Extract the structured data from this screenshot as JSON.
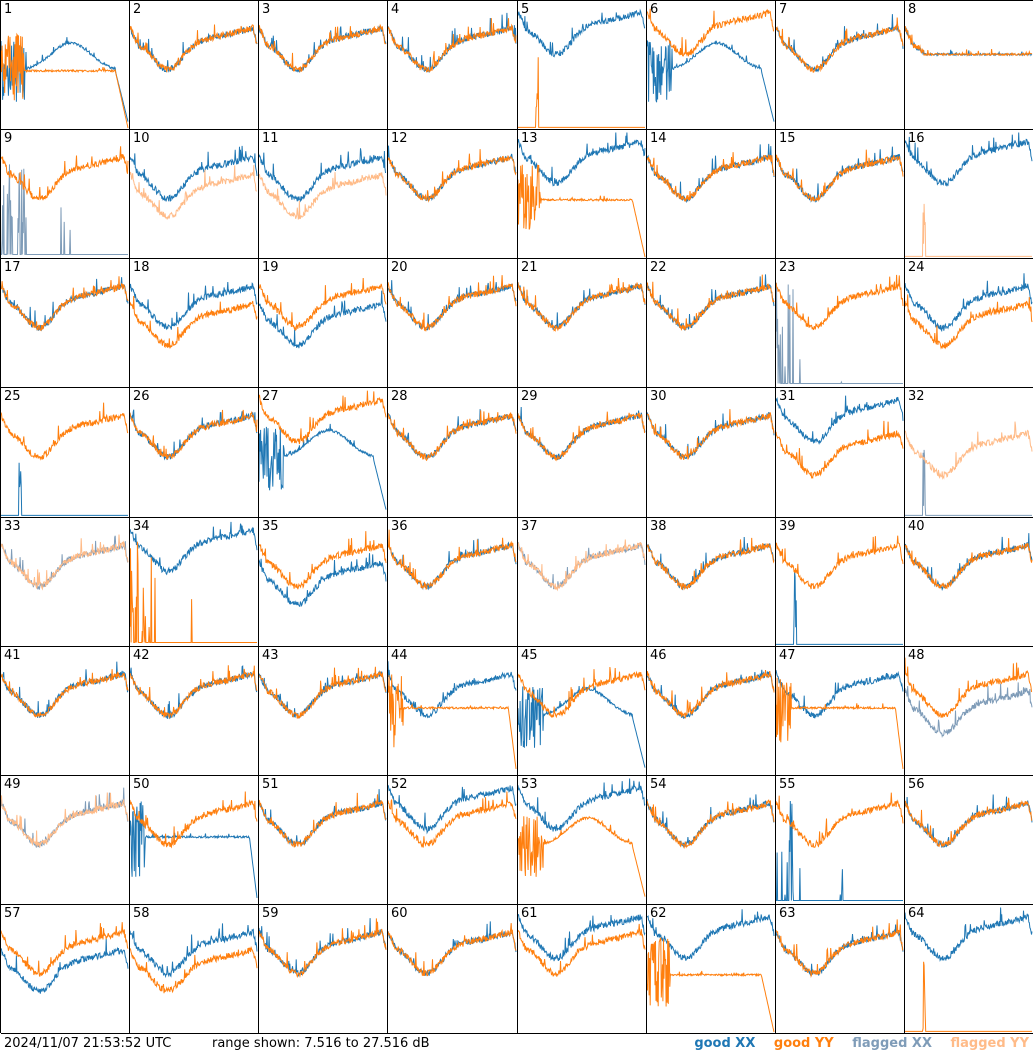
{
  "footer": {
    "timestamp": "2024/11/07 21:53:52 UTC",
    "range_text": "range shown: 7.516 to 27.516 dB"
  },
  "legend": [
    {
      "label": "good XX",
      "color": "#1f77b4"
    },
    {
      "label": "good YY",
      "color": "#ff7f0e"
    },
    {
      "label": "flagged XX",
      "color": "#7f9cb8"
    },
    {
      "label": "flagged YY",
      "color": "#ffbb88"
    }
  ],
  "chart_data": {
    "type": "line",
    "ylim": [
      7.516,
      27.516
    ],
    "grid": false,
    "legend_position": "bottom-right",
    "panels": [
      {
        "label": "1",
        "xx": {
          "state": "good",
          "shape": "hump"
        },
        "yy": {
          "state": "good",
          "shape": "dropout_plateau"
        }
      },
      {
        "label": "2",
        "xx": {
          "state": "good",
          "shape": "normal"
        },
        "yy": {
          "state": "good",
          "shape": "normal"
        }
      },
      {
        "label": "3",
        "xx": {
          "state": "good",
          "shape": "normal"
        },
        "yy": {
          "state": "good",
          "shape": "normal"
        }
      },
      {
        "label": "4",
        "xx": {
          "state": "good",
          "shape": "normal"
        },
        "yy": {
          "state": "good",
          "shape": "normal"
        }
      },
      {
        "label": "5",
        "xx": {
          "state": "good",
          "shape": "high"
        },
        "yy": {
          "state": "good",
          "shape": "flat_spike"
        }
      },
      {
        "label": "6",
        "xx": {
          "state": "good",
          "shape": "hump"
        },
        "yy": {
          "state": "good",
          "shape": "high"
        }
      },
      {
        "label": "7",
        "xx": {
          "state": "good",
          "shape": "normal"
        },
        "yy": {
          "state": "good",
          "shape": "normal"
        }
      },
      {
        "label": "8",
        "xx": {
          "state": "good",
          "shape": "plateau"
        },
        "yy": {
          "state": "good",
          "shape": "plateau"
        }
      },
      {
        "label": "9",
        "xx": {
          "state": "flagged",
          "shape": "flat_spikes"
        },
        "yy": {
          "state": "good",
          "shape": "normal"
        }
      },
      {
        "label": "10",
        "xx": {
          "state": "good",
          "shape": "normal"
        },
        "yy": {
          "state": "flagged",
          "shape": "low"
        }
      },
      {
        "label": "11",
        "xx": {
          "state": "good",
          "shape": "normal"
        },
        "yy": {
          "state": "flagged",
          "shape": "low"
        }
      },
      {
        "label": "12",
        "xx": {
          "state": "good",
          "shape": "normal"
        },
        "yy": {
          "state": "good",
          "shape": "normal"
        }
      },
      {
        "label": "13",
        "xx": {
          "state": "good",
          "shape": "high"
        },
        "yy": {
          "state": "good",
          "shape": "dropout_plateau"
        }
      },
      {
        "label": "14",
        "xx": {
          "state": "good",
          "shape": "normal"
        },
        "yy": {
          "state": "good",
          "shape": "normal"
        }
      },
      {
        "label": "15",
        "xx": {
          "state": "good",
          "shape": "normal"
        },
        "yy": {
          "state": "good",
          "shape": "normal"
        }
      },
      {
        "label": "16",
        "xx": {
          "state": "good",
          "shape": "high"
        },
        "yy": {
          "state": "flagged",
          "shape": "flat_spike"
        }
      },
      {
        "label": "17",
        "xx": {
          "state": "good",
          "shape": "normal"
        },
        "yy": {
          "state": "good",
          "shape": "normal"
        }
      },
      {
        "label": "18",
        "xx": {
          "state": "good",
          "shape": "normal"
        },
        "yy": {
          "state": "good",
          "shape": "low"
        }
      },
      {
        "label": "19",
        "xx": {
          "state": "good",
          "shape": "low"
        },
        "yy": {
          "state": "good",
          "shape": "normal"
        }
      },
      {
        "label": "20",
        "xx": {
          "state": "good",
          "shape": "normal"
        },
        "yy": {
          "state": "good",
          "shape": "normal"
        }
      },
      {
        "label": "21",
        "xx": {
          "state": "good",
          "shape": "normal"
        },
        "yy": {
          "state": "good",
          "shape": "normal"
        }
      },
      {
        "label": "22",
        "xx": {
          "state": "good",
          "shape": "normal"
        },
        "yy": {
          "state": "good",
          "shape": "normal"
        }
      },
      {
        "label": "23",
        "xx": {
          "state": "flagged",
          "shape": "flat_spikes"
        },
        "yy": {
          "state": "good",
          "shape": "normal"
        }
      },
      {
        "label": "24",
        "xx": {
          "state": "good",
          "shape": "normal"
        },
        "yy": {
          "state": "good",
          "shape": "low"
        }
      },
      {
        "label": "25",
        "xx": {
          "state": "good",
          "shape": "flat_spike"
        },
        "yy": {
          "state": "good",
          "shape": "normal"
        }
      },
      {
        "label": "26",
        "xx": {
          "state": "good",
          "shape": "normal"
        },
        "yy": {
          "state": "good",
          "shape": "normal"
        }
      },
      {
        "label": "27",
        "xx": {
          "state": "good",
          "shape": "hump"
        },
        "yy": {
          "state": "good",
          "shape": "high"
        }
      },
      {
        "label": "28",
        "xx": {
          "state": "good",
          "shape": "normal"
        },
        "yy": {
          "state": "good",
          "shape": "normal"
        }
      },
      {
        "label": "29",
        "xx": {
          "state": "good",
          "shape": "normal"
        },
        "yy": {
          "state": "good",
          "shape": "normal"
        }
      },
      {
        "label": "30",
        "xx": {
          "state": "good",
          "shape": "normal"
        },
        "yy": {
          "state": "good",
          "shape": "normal"
        }
      },
      {
        "label": "31",
        "xx": {
          "state": "good",
          "shape": "high"
        },
        "yy": {
          "state": "good",
          "shape": "low"
        }
      },
      {
        "label": "32",
        "xx": {
          "state": "flagged",
          "shape": "flat_spike"
        },
        "yy": {
          "state": "flagged",
          "shape": "low"
        }
      },
      {
        "label": "33",
        "xx": {
          "state": "flagged",
          "shape": "normal"
        },
        "yy": {
          "state": "flagged",
          "shape": "normal"
        }
      },
      {
        "label": "34",
        "xx": {
          "state": "good",
          "shape": "high"
        },
        "yy": {
          "state": "good",
          "shape": "flat_spikes"
        }
      },
      {
        "label": "35",
        "xx": {
          "state": "good",
          "shape": "low"
        },
        "yy": {
          "state": "good",
          "shape": "normal"
        }
      },
      {
        "label": "36",
        "xx": {
          "state": "good",
          "shape": "normal"
        },
        "yy": {
          "state": "good",
          "shape": "normal"
        }
      },
      {
        "label": "37",
        "xx": {
          "state": "flagged",
          "shape": "normal"
        },
        "yy": {
          "state": "flagged",
          "shape": "normal"
        }
      },
      {
        "label": "38",
        "xx": {
          "state": "good",
          "shape": "normal"
        },
        "yy": {
          "state": "good",
          "shape": "normal"
        }
      },
      {
        "label": "39",
        "xx": {
          "state": "good",
          "shape": "flat_spike"
        },
        "yy": {
          "state": "good",
          "shape": "normal"
        }
      },
      {
        "label": "40",
        "xx": {
          "state": "good",
          "shape": "normal"
        },
        "yy": {
          "state": "good",
          "shape": "normal"
        }
      },
      {
        "label": "41",
        "xx": {
          "state": "good",
          "shape": "normal"
        },
        "yy": {
          "state": "good",
          "shape": "normal"
        }
      },
      {
        "label": "42",
        "xx": {
          "state": "good",
          "shape": "normal"
        },
        "yy": {
          "state": "good",
          "shape": "normal"
        }
      },
      {
        "label": "43",
        "xx": {
          "state": "good",
          "shape": "normal"
        },
        "yy": {
          "state": "good",
          "shape": "normal"
        }
      },
      {
        "label": "44",
        "xx": {
          "state": "good",
          "shape": "normal"
        },
        "yy": {
          "state": "good",
          "shape": "plateau_drop"
        }
      },
      {
        "label": "45",
        "xx": {
          "state": "good",
          "shape": "hump"
        },
        "yy": {
          "state": "good",
          "shape": "normal"
        }
      },
      {
        "label": "46",
        "xx": {
          "state": "good",
          "shape": "normal"
        },
        "yy": {
          "state": "good",
          "shape": "normal"
        }
      },
      {
        "label": "47",
        "xx": {
          "state": "good",
          "shape": "normal"
        },
        "yy": {
          "state": "good",
          "shape": "plateau_drop"
        }
      },
      {
        "label": "48",
        "xx": {
          "state": "flagged",
          "shape": "low"
        },
        "yy": {
          "state": "good",
          "shape": "normal"
        }
      },
      {
        "label": "49",
        "xx": {
          "state": "flagged",
          "shape": "normal"
        },
        "yy": {
          "state": "flagged",
          "shape": "normal"
        }
      },
      {
        "label": "50",
        "xx": {
          "state": "good",
          "shape": "plateau_drop"
        },
        "yy": {
          "state": "good",
          "shape": "normal"
        }
      },
      {
        "label": "51",
        "xx": {
          "state": "good",
          "shape": "normal"
        },
        "yy": {
          "state": "good",
          "shape": "normal"
        }
      },
      {
        "label": "52",
        "xx": {
          "state": "good",
          "shape": "high"
        },
        "yy": {
          "state": "good",
          "shape": "normal"
        }
      },
      {
        "label": "53",
        "xx": {
          "state": "good",
          "shape": "high"
        },
        "yy": {
          "state": "good",
          "shape": "hump"
        }
      },
      {
        "label": "54",
        "xx": {
          "state": "good",
          "shape": "normal"
        },
        "yy": {
          "state": "good",
          "shape": "normal"
        }
      },
      {
        "label": "55",
        "xx": {
          "state": "good",
          "shape": "flat_spikes"
        },
        "yy": {
          "state": "good",
          "shape": "normal"
        }
      },
      {
        "label": "56",
        "xx": {
          "state": "good",
          "shape": "normal"
        },
        "yy": {
          "state": "good",
          "shape": "normal"
        }
      },
      {
        "label": "57",
        "xx": {
          "state": "good",
          "shape": "low"
        },
        "yy": {
          "state": "good",
          "shape": "normal"
        }
      },
      {
        "label": "58",
        "xx": {
          "state": "good",
          "shape": "normal"
        },
        "yy": {
          "state": "good",
          "shape": "low"
        }
      },
      {
        "label": "59",
        "xx": {
          "state": "good",
          "shape": "normal"
        },
        "yy": {
          "state": "good",
          "shape": "normal"
        }
      },
      {
        "label": "60",
        "xx": {
          "state": "good",
          "shape": "normal"
        },
        "yy": {
          "state": "good",
          "shape": "normal"
        }
      },
      {
        "label": "61",
        "xx": {
          "state": "good",
          "shape": "high"
        },
        "yy": {
          "state": "good",
          "shape": "normal"
        }
      },
      {
        "label": "62",
        "xx": {
          "state": "good",
          "shape": "high"
        },
        "yy": {
          "state": "good",
          "shape": "dropout_plateau"
        }
      },
      {
        "label": "63",
        "xx": {
          "state": "good",
          "shape": "normal"
        },
        "yy": {
          "state": "good",
          "shape": "normal"
        }
      },
      {
        "label": "64",
        "xx": {
          "state": "good",
          "shape": "high"
        },
        "yy": {
          "state": "good",
          "shape": "flat_spike"
        }
      }
    ]
  }
}
